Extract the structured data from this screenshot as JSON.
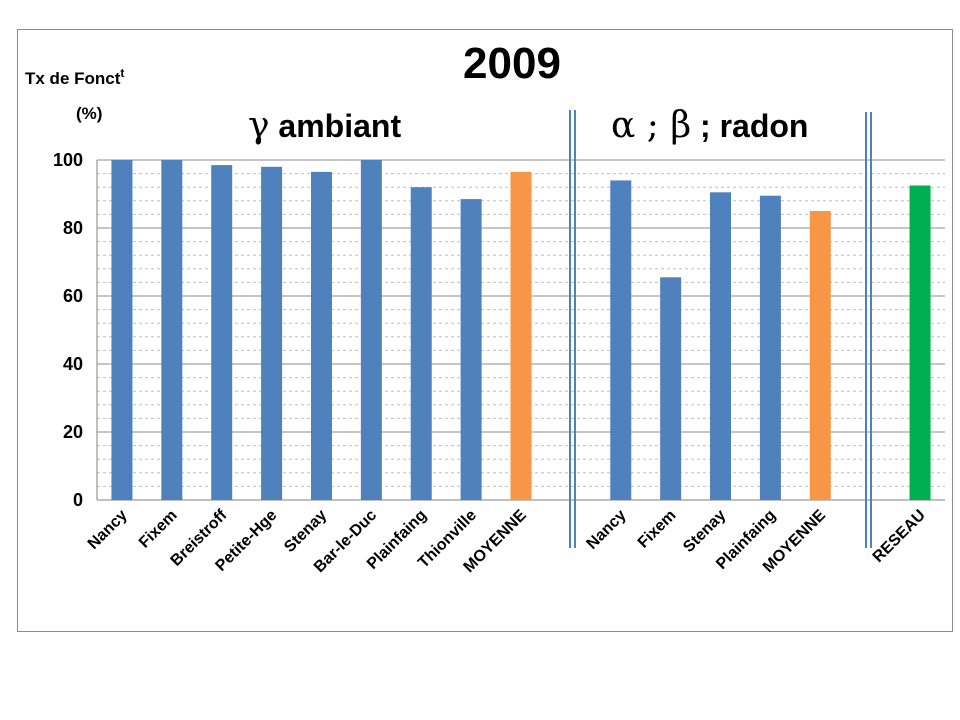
{
  "chart_data": {
    "type": "bar",
    "title": "2009",
    "ylabel_line1": "Tx de Fonct",
    "ylabel_sup": "t",
    "ylabel_line2": "(%)",
    "groups": [
      {
        "label_symbol": "γ",
        "label_text": " ambiant"
      },
      {
        "label_symbol": "α ; β",
        "label_text": " ; radon"
      }
    ],
    "ylim": [
      0,
      100
    ],
    "yticks": [
      "0",
      "20",
      "40",
      "60",
      "80",
      "100"
    ],
    "grid": "major solid, minor dashed",
    "categories": [
      "Nancy",
      "Fixem",
      "Breistroff",
      "Petite-Hge",
      "Stenay",
      "Bar-le-Duc",
      "Plainfaing",
      "Thionville",
      "MOYENNE",
      "Nancy",
      "Fixem",
      "Stenay",
      "Plainfaing",
      "MOYENNE",
      "RESEAU"
    ],
    "values": [
      100,
      100,
      98.5,
      98,
      96.5,
      100,
      92,
      88.5,
      96.5,
      94,
      65.5,
      90.5,
      89.5,
      85,
      92.5
    ],
    "bar_colors": [
      "#4f81bd",
      "#4f81bd",
      "#4f81bd",
      "#4f81bd",
      "#4f81bd",
      "#4f81bd",
      "#4f81bd",
      "#4f81bd",
      "#f79646",
      "#4f81bd",
      "#4f81bd",
      "#4f81bd",
      "#4f81bd",
      "#f79646",
      "#00b050"
    ]
  }
}
